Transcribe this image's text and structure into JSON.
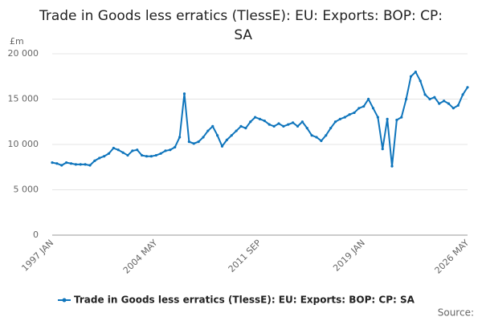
{
  "chart_data": {
    "type": "line",
    "title": "Trade in Goods less erratics (TlessE): EU: Exports: BOP: CP: SA",
    "y_unit": "£m",
    "source": "Source:",
    "categories": [
      "1997 JAN",
      null,
      null,
      null,
      null,
      null,
      null,
      null,
      null,
      null,
      null,
      null,
      null,
      null,
      null,
      null,
      null,
      null,
      null,
      null,
      null,
      null,
      "2004 MAY",
      null,
      null,
      null,
      null,
      null,
      null,
      null,
      null,
      null,
      null,
      null,
      null,
      null,
      null,
      null,
      null,
      null,
      null,
      null,
      null,
      null,
      "2011 SEP",
      null,
      null,
      null,
      null,
      null,
      null,
      null,
      null,
      null,
      null,
      null,
      null,
      null,
      null,
      null,
      null,
      null,
      null,
      null,
      null,
      null,
      "2019 JAN",
      null,
      null,
      null,
      null,
      null,
      null,
      null,
      null,
      null,
      null,
      null,
      null,
      null,
      null,
      null,
      null,
      null,
      null,
      null,
      null,
      null,
      "2026 MAY"
    ],
    "series": [
      {
        "name": "Trade in Goods less erratics (TlessE): EU: Exports: BOP: CP: SA",
        "color": "#0f75bc",
        "values": [
          8000,
          7900,
          7700,
          8000,
          7900,
          7800,
          7800,
          7800,
          7700,
          8200,
          8500,
          8700,
          9000,
          9600,
          9400,
          9100,
          8800,
          9300,
          9400,
          8800,
          8700,
          8700,
          8800,
          9000,
          9300,
          9400,
          9700,
          10800,
          15600,
          10300,
          10100,
          10300,
          10800,
          11500,
          12000,
          11000,
          9800,
          10500,
          11000,
          11500,
          12000,
          11800,
          12500,
          13000,
          12800,
          12600,
          12200,
          12000,
          12300,
          12000,
          12200,
          12400,
          12000,
          12500,
          11800,
          11000,
          10800,
          10400,
          11000,
          11800,
          12500,
          12800,
          13000,
          13300,
          13500,
          14000,
          14200,
          15000,
          14000,
          13000,
          9500,
          12800,
          7600,
          12700,
          13000,
          15000,
          17500,
          18000,
          17000,
          15500,
          15000,
          15200,
          14500,
          14800,
          14500,
          14000,
          14300,
          15500,
          16300
        ]
      }
    ],
    "ylim": [
      0,
      20000
    ],
    "yticks": [
      0,
      {
        "value": 5000,
        "label": "5 000"
      },
      {
        "value": 10000,
        "label": "10 000"
      },
      {
        "value": 15000,
        "label": "15 000"
      },
      {
        "value": 20000,
        "label": "20 000"
      }
    ],
    "grid": true
  }
}
